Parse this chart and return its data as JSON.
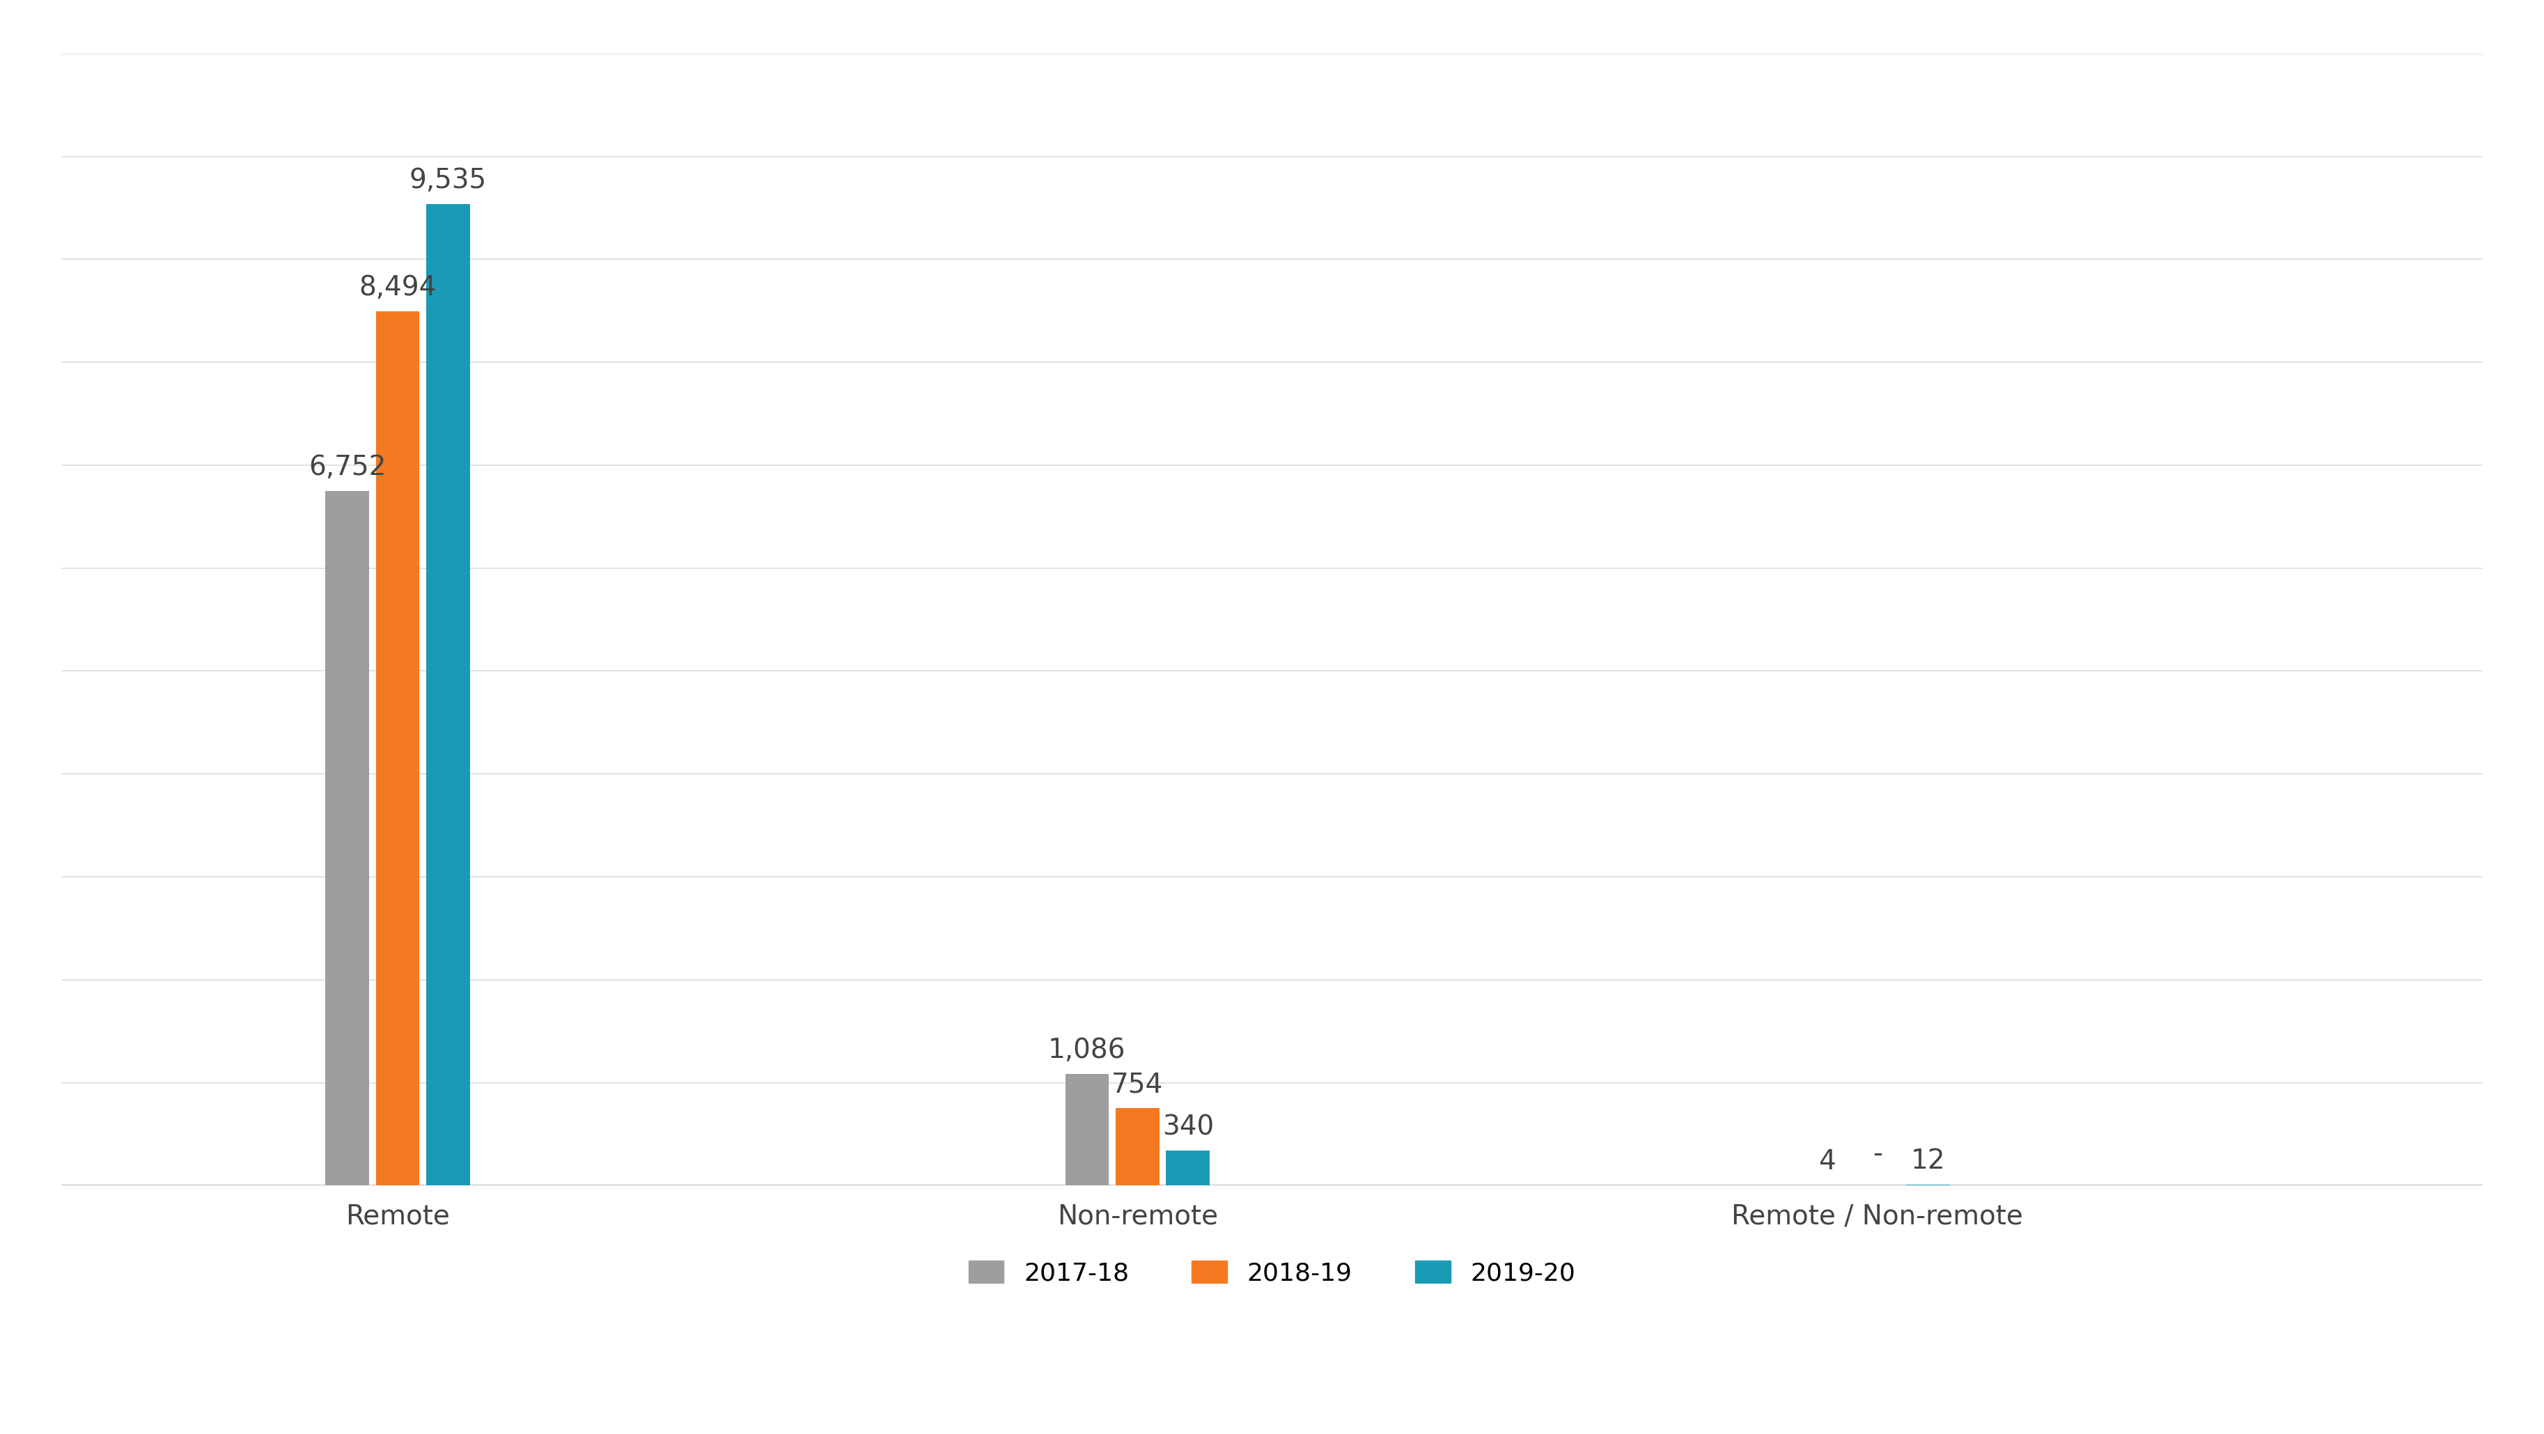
{
  "categories": [
    "Remote",
    "Non-remote",
    "Remote / Non-remote"
  ],
  "series": {
    "2017-18": [
      6752,
      1086,
      4
    ],
    "2018-19": [
      8494,
      754,
      0
    ],
    "2019-20": [
      9535,
      340,
      12
    ]
  },
  "series_labels": [
    "2017-18",
    "2018-19",
    "2019-20"
  ],
  "bar_colors": [
    "#9E9E9E",
    "#F47920",
    "#1A9BB5"
  ],
  "value_labels": {
    "2017-18": [
      "6,752",
      "1,086",
      "4"
    ],
    "2018-19": [
      "8,494",
      "754",
      "-"
    ],
    "2019-20": [
      "9,535",
      "340",
      "12"
    ]
  },
  "ylim": [
    0,
    11000
  ],
  "background_color": "#FFFFFF",
  "bar_width": 0.13,
  "bar_gap": 0.02,
  "group_positions": [
    1.0,
    3.2,
    5.4
  ],
  "xlim": [
    0.0,
    7.2
  ],
  "label_fontsize": 28,
  "tick_fontsize": 28,
  "legend_fontsize": 26,
  "annotation_fontsize": 28,
  "grid_color": "#DDDDDD",
  "grid_linewidth": 1.2,
  "bottom_line_color": "#BBBBBB",
  "text_color": "#444444"
}
